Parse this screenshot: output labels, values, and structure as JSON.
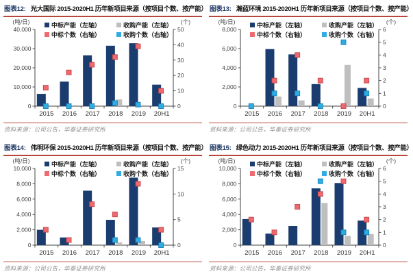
{
  "colors": {
    "bar_navy": "#1A3C6E",
    "bar_gray": "#BFBFBF",
    "marker_red": "#EF6A6E",
    "marker_red_border": "#C4444A",
    "marker_cyan": "#2FACE0",
    "marker_cyan_border": "#1580BE",
    "fig_label": "#1F3864",
    "rule_red": "#B8453C",
    "axis_line": "#404040",
    "axis_text": "#3F3F3F",
    "legend_text": "#1A1A1A",
    "source_text": "#8C8C8C"
  },
  "legend": {
    "items": [
      {
        "name": "win-capacity",
        "label": "中标产能（左轴）",
        "color_key": "bar_navy"
      },
      {
        "name": "acq-capacity",
        "label": "收购产能（左轴）",
        "color_key": "bar_gray"
      },
      {
        "name": "win-count",
        "label": "中标个数（右轴）",
        "color_key": "marker_red"
      },
      {
        "name": "acq-count",
        "label": "收购个数（右轴）",
        "color_key": "marker_cyan"
      }
    ]
  },
  "chart_data": [
    {
      "type": "bar",
      "fig_label": "图表12:",
      "title": "光大国际 2015-2020H1 历年新项目来源（按项目个数、按产能）",
      "source": "资料来源：公司公告，华泰证券研究所",
      "left_axis_unit": "(吨/日)",
      "right_axis_unit": "(个)",
      "categories": [
        "2015",
        "2016",
        "2017",
        "2018",
        "2019",
        "20H1"
      ],
      "left_ylim": [
        0,
        40000
      ],
      "left_ticks": [
        0,
        10000,
        20000,
        30000,
        40000
      ],
      "right_ylim": [
        0,
        50
      ],
      "right_ticks": [
        0,
        10,
        20,
        30,
        40,
        50
      ],
      "series": [
        {
          "name": "中标产能（左轴）",
          "kind": "bar",
          "axis": "left",
          "color_key": "bar_navy",
          "values": [
            6400,
            12800,
            26500,
            31500,
            32800,
            11200
          ]
        },
        {
          "name": "收购产能（左轴）",
          "kind": "bar",
          "axis": "left",
          "color_key": "bar_gray",
          "values": [
            0,
            0,
            0,
            3500,
            600,
            0
          ]
        },
        {
          "name": "中标个数（右轴）",
          "kind": "point",
          "axis": "right",
          "color_key": "marker_red",
          "stroke_key": "marker_red_border",
          "values": [
            12,
            22,
            27,
            32,
            39,
            10
          ]
        },
        {
          "name": "收购个数（右轴）",
          "kind": "point",
          "axis": "right",
          "color_key": "marker_cyan",
          "stroke_key": "marker_cyan_border",
          "values": [
            0,
            0,
            0,
            2,
            1,
            0
          ]
        }
      ]
    },
    {
      "type": "bar",
      "fig_label": "图表13:",
      "title": "瀚蓝环境 2015-2020H1 历年新项目来源（按项目个数、按产能）",
      "source": "资料来源：公司公告，华泰证券研究所",
      "left_axis_unit": "(吨/日)",
      "right_axis_unit": "(个)",
      "categories": [
        "2015",
        "2016",
        "2017",
        "2018",
        "2019",
        "20H1"
      ],
      "left_ylim": [
        0,
        8000
      ],
      "left_ticks": [
        0,
        2000,
        4000,
        6000,
        8000
      ],
      "right_ylim": [
        0,
        6
      ],
      "right_ticks": [
        0,
        1,
        2,
        3,
        4,
        5,
        6
      ],
      "series": [
        {
          "name": "中标产能（左轴）",
          "kind": "bar",
          "axis": "left",
          "color_key": "bar_navy",
          "values": [
            0,
            5950,
            5400,
            2300,
            0,
            1900
          ]
        },
        {
          "name": "收购产能（左轴）",
          "kind": "bar",
          "axis": "left",
          "color_key": "bar_gray",
          "values": [
            0,
            1000,
            600,
            0,
            4300,
            800
          ]
        },
        {
          "name": "中标个数（右轴）",
          "kind": "point",
          "axis": "right",
          "color_key": "marker_red",
          "stroke_key": "marker_red_border",
          "values": [
            null,
            2,
            4,
            2,
            0,
            2
          ]
        },
        {
          "name": "收购个数（右轴）",
          "kind": "point",
          "axis": "right",
          "color_key": "marker_cyan",
          "stroke_key": "marker_cyan_border",
          "values": [
            0,
            1,
            1,
            0,
            5,
            1
          ]
        }
      ]
    },
    {
      "type": "bar",
      "fig_label": "图表14:",
      "title": "伟明环保 2015-2020H1 历年新项目来源（按项目个数、按产能）",
      "source": "资料来源：公司公告，华泰证券研究所",
      "left_axis_unit": "(吨/日)",
      "right_axis_unit": "(个)",
      "categories": [
        "2015",
        "2016",
        "2017",
        "2018",
        "2019",
        "20H1"
      ],
      "left_ylim": [
        0,
        10000
      ],
      "left_ticks": [
        0,
        2000,
        4000,
        6000,
        8000,
        10000
      ],
      "right_ylim": [
        0,
        15
      ],
      "right_ticks": [
        0,
        5,
        10,
        15
      ],
      "series": [
        {
          "name": "中标产能（左轴）",
          "kind": "bar",
          "axis": "left",
          "color_key": "bar_navy",
          "values": [
            2000,
            1000,
            7100,
            3300,
            8800,
            2300
          ]
        },
        {
          "name": "收购产能（左轴）",
          "kind": "bar",
          "axis": "left",
          "color_key": "bar_gray",
          "values": [
            0,
            0,
            0,
            350,
            550,
            0
          ]
        },
        {
          "name": "中标个数（右轴）",
          "kind": "point",
          "axis": "right",
          "color_key": "marker_red",
          "stroke_key": "marker_red_border",
          "values": [
            3,
            1,
            8,
            6,
            12,
            3
          ]
        },
        {
          "name": "收购个数（右轴）",
          "kind": "point",
          "axis": "right",
          "color_key": "marker_cyan",
          "stroke_key": "marker_cyan_border",
          "values": [
            null,
            null,
            null,
            1,
            1,
            0
          ]
        }
      ]
    },
    {
      "type": "bar",
      "fig_label": "图表15:",
      "title": "绿色动力 2015-2020H1 历年新项目来源（按项目个数、按产能）",
      "source": "资料来源：公司公告，华泰证券研究所",
      "left_axis_unit": "(吨/日)",
      "right_axis_unit": "(个)",
      "categories": [
        "2015",
        "2016",
        "2017",
        "2018",
        "2019",
        "20H1"
      ],
      "left_ylim": [
        0,
        10000
      ],
      "left_ticks": [
        0,
        2000,
        4000,
        6000,
        8000,
        10000
      ],
      "right_ylim": [
        0,
        6
      ],
      "right_ticks": [
        0,
        1,
        2,
        3,
        4,
        5,
        6
      ],
      "series": [
        {
          "name": "中标产能（左轴）",
          "kind": "bar",
          "axis": "left",
          "color_key": "bar_navy",
          "values": [
            3400,
            1500,
            2500,
            7400,
            8100,
            3200
          ]
        },
        {
          "name": "收购产能（左轴）",
          "kind": "bar",
          "axis": "left",
          "color_key": "bar_gray",
          "values": [
            0,
            0,
            0,
            5500,
            1200,
            1450
          ]
        },
        {
          "name": "中标个数（右轴）",
          "kind": "point",
          "axis": "right",
          "color_key": "marker_red",
          "stroke_key": "marker_red_border",
          "values": [
            2,
            1,
            3,
            4,
            5,
            2
          ]
        },
        {
          "name": "收购个数（右轴）",
          "kind": "point",
          "axis": "right",
          "color_key": "marker_cyan",
          "stroke_key": "marker_cyan_border",
          "values": [
            null,
            null,
            null,
            5,
            1,
            1
          ]
        }
      ]
    }
  ]
}
